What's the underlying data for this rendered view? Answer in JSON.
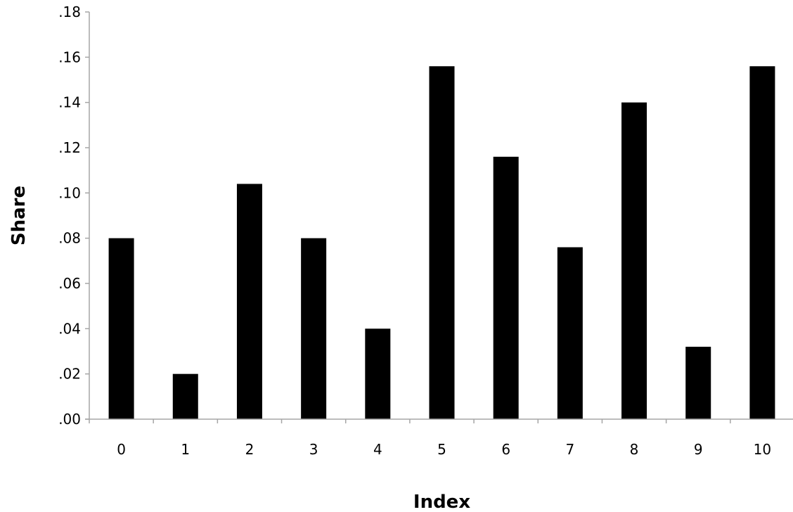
{
  "chart_data": {
    "type": "bar",
    "categories": [
      "0",
      "1",
      "2",
      "3",
      "4",
      "5",
      "6",
      "7",
      "8",
      "9",
      "10"
    ],
    "values": [
      0.08,
      0.02,
      0.104,
      0.08,
      0.04,
      0.156,
      0.116,
      0.076,
      0.14,
      0.032,
      0.156
    ],
    "ylim": [
      0,
      0.18
    ],
    "yticks": [
      ".00",
      ".02",
      ".04",
      ".06",
      ".08",
      ".10",
      ".12",
      ".14",
      ".16",
      ".18"
    ],
    "xlabel": "Index",
    "ylabel": "Share",
    "grid": false,
    "legend": "none",
    "bar_color": "#000000",
    "axis_color": "#a6a6a6"
  }
}
